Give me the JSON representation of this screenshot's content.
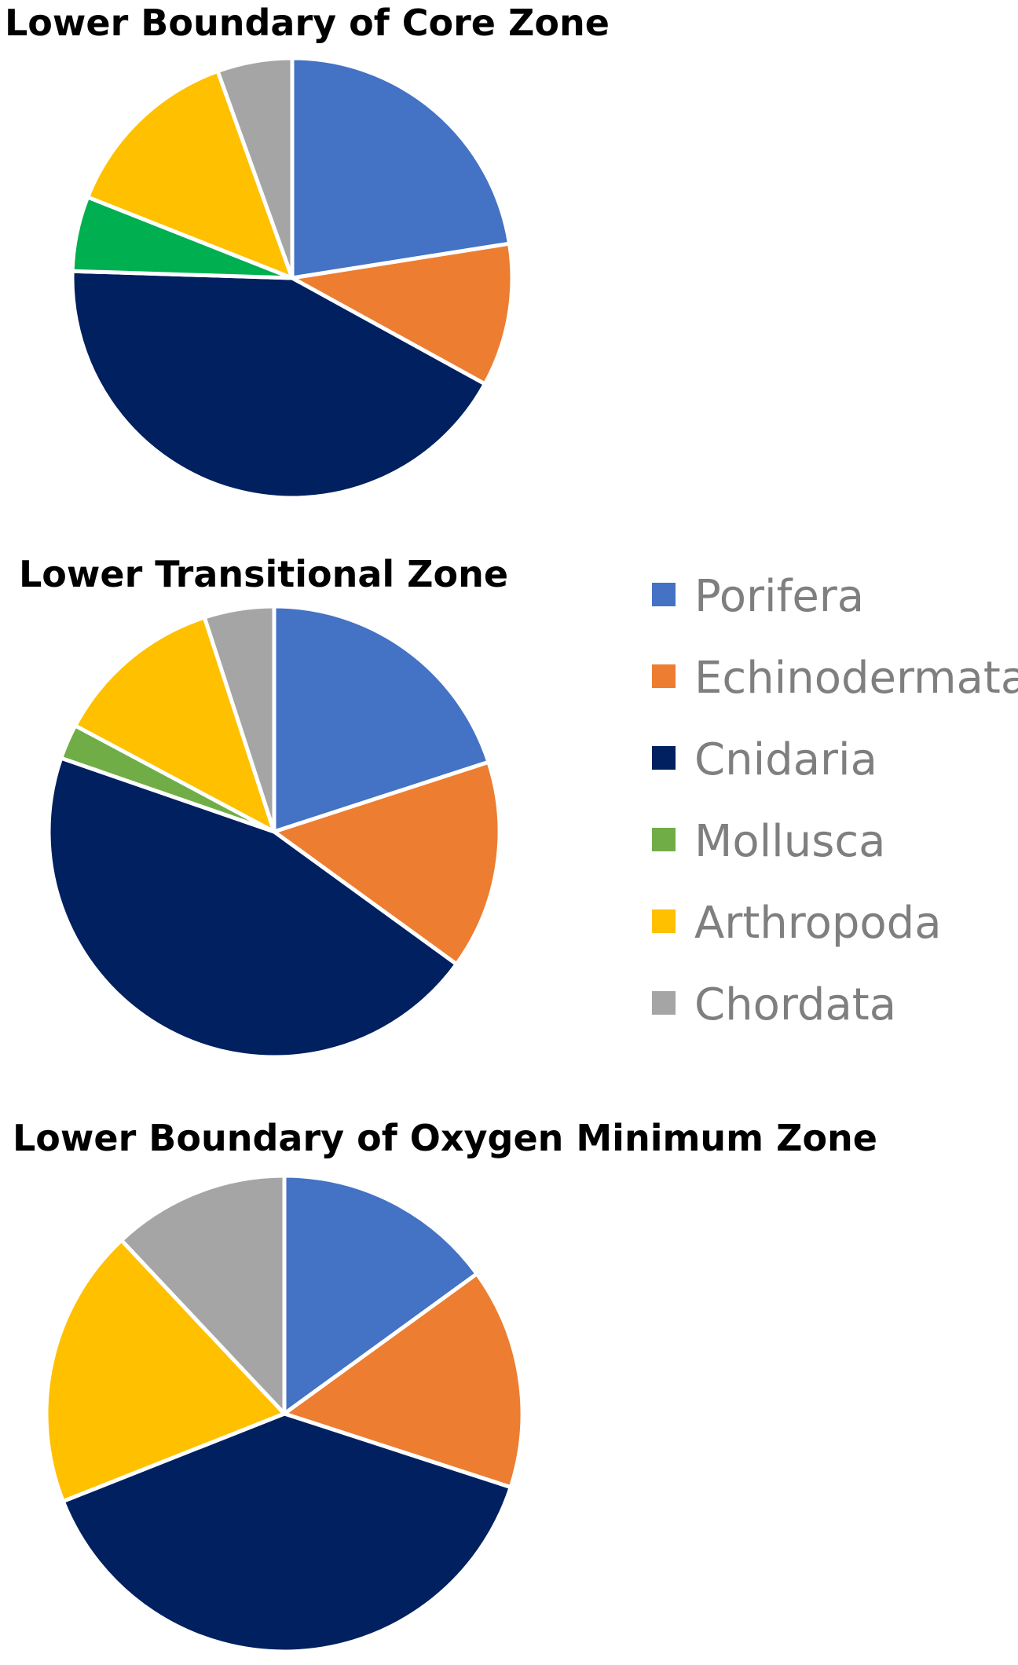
{
  "chart_data": [
    {
      "type": "pie",
      "title": "Lower Boundary of Core Zone",
      "categories": [
        "Porifera",
        "Echinodermata",
        "Cnidaria",
        "Mollusca",
        "Arthropoda",
        "Chordata"
      ],
      "values": [
        22.5,
        10.5,
        42.5,
        5.5,
        13.5,
        5.5
      ]
    },
    {
      "type": "pie",
      "title": "Lower Transitional Zone",
      "categories": [
        "Porifera",
        "Echinodermata",
        "Cnidaria",
        "Mollusca",
        "Arthropoda",
        "Chordata"
      ],
      "values": [
        20.0,
        15.0,
        45.3,
        2.5,
        12.2,
        5.0
      ]
    },
    {
      "type": "pie",
      "title": "Lower Boundary of Oxygen Minimum Zone",
      "categories": [
        "Porifera",
        "Echinodermata",
        "Cnidaria",
        "Mollusca",
        "Arthropoda",
        "Chordata"
      ],
      "values": [
        15.0,
        15.0,
        39.0,
        0,
        19.0,
        12.0
      ]
    }
  ],
  "legend": {
    "placement": "right",
    "items": [
      {
        "label": "Porifera",
        "color": "#4472c4"
      },
      {
        "label": "Echinodermata",
        "color": "#ed7d31"
      },
      {
        "label": "Cnidaria",
        "color": "#002060"
      },
      {
        "label": "Mollusca",
        "color": "#70ad47"
      },
      {
        "label": "Arthropoda",
        "color": "#ffc000"
      },
      {
        "label": "Chordata",
        "color": "#a5a5a5"
      }
    ]
  },
  "colors": {
    "Porifera": "#4472c4",
    "Echinodermata": "#ed7d31",
    "Cnidaria": "#002060",
    "Mollusca_chart1": "#00b050",
    "Mollusca": "#70ad47",
    "Arthropoda": "#ffc000",
    "Chordata": "#a5a5a5"
  }
}
